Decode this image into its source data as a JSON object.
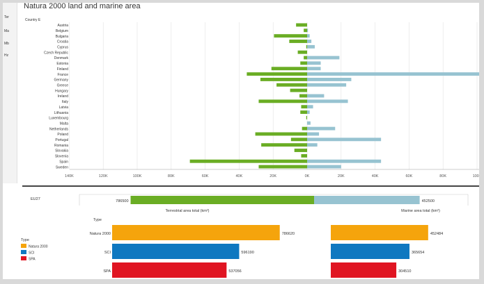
{
  "title": "Natura 2000 land and marine area",
  "left_nav": [
    "Ter",
    "Ma",
    "Mb",
    "Hz"
  ],
  "chart_data": [
    {
      "type": "bar",
      "orientation": "horizontal-diverging",
      "ylabel": "Country E",
      "categories": [
        "Austria",
        "Belgium",
        "Bulgaria",
        "Croatia",
        "Cyprus",
        "Czech Republic",
        "Denmark",
        "Estonia",
        "Finland",
        "France",
        "Germany",
        "Greece",
        "Hungary",
        "Ireland",
        "Italy",
        "Latvia",
        "Lithuania",
        "Luxembourg",
        "Malta",
        "Netherlands",
        "Poland",
        "Portugal",
        "Romania",
        "Slovakia",
        "Slovenia",
        "Spain",
        "Sweden"
      ],
      "series": [
        {
          "name": "Terrestrial area total (km²)",
          "color": "#6aad24",
          "values": [
            13000,
            4000,
            39000,
            21000,
            1000,
            11000,
            4000,
            8000,
            42000,
            71000,
            55000,
            36000,
            20000,
            9000,
            57000,
            7000,
            8000,
            1000,
            0,
            6000,
            61000,
            19000,
            54000,
            15000,
            7000,
            138000,
            57000
          ]
        },
        {
          "name": "Marine area total (km²)",
          "color": "#97c3d1",
          "values": [
            0,
            1000,
            3000,
            5000,
            9000,
            0,
            38000,
            16000,
            16000,
            280000,
            52000,
            46000,
            0,
            20000,
            48000,
            7000,
            3000,
            0,
            4000,
            33000,
            14000,
            87000,
            12000,
            0,
            0,
            87000,
            40000
          ]
        }
      ],
      "x_ticks": [
        "140K",
        "120K",
        "100K",
        "80K",
        "60K",
        "40K",
        "20K",
        "0K",
        "20K",
        "40K",
        "60K",
        "80K",
        "100K",
        "120K",
        "140K"
      ],
      "xlim": [
        -140000,
        280000
      ],
      "grid": true
    },
    {
      "type": "bar",
      "orientation": "horizontal-diverging",
      "categories": [
        "EU27"
      ],
      "series": [
        {
          "name": "Terrestrial area total (km²)",
          "color": "#6aad24",
          "values": [
            786500
          ],
          "data_label": "786500"
        },
        {
          "name": "Marine area total (km²)",
          "color": "#97c3d1",
          "values": [
            452500
          ],
          "data_label": "452500"
        }
      ],
      "axis_labels": {
        "left": "Terrestrial area total (km²)",
        "right": "Marine area total (km²)"
      }
    },
    {
      "type": "bar",
      "orientation": "horizontal",
      "legend_title": "Type",
      "legend_position": "left",
      "categories": [
        "Natura 2000",
        "SCI",
        "SPA"
      ],
      "colors": [
        "#f5a40c",
        "#0f78c0",
        "#e01522"
      ],
      "series": [
        {
          "name": "Terrestrial area total (km²)",
          "values": [
            786620,
            596190,
            537056
          ],
          "labels": [
            "786620",
            "596190",
            "537056"
          ]
        },
        {
          "name": "Marine area total (km²)",
          "values": [
            452484,
            365654,
            304510
          ],
          "labels": [
            "452484",
            "365654",
            "304510"
          ]
        }
      ]
    }
  ]
}
